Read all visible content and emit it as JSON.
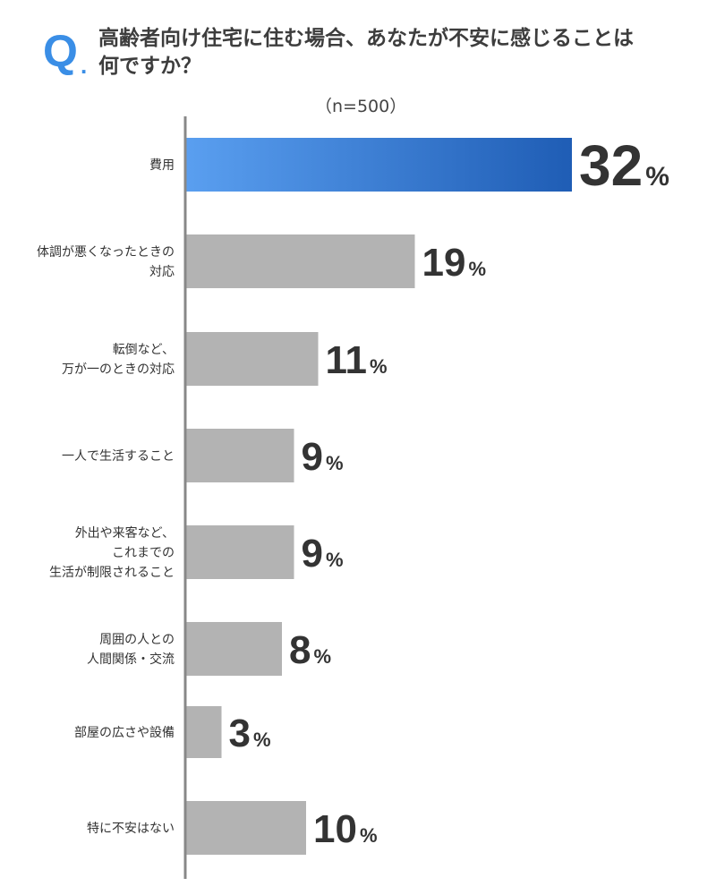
{
  "question": {
    "mark": "Q",
    "mark_dot": ".",
    "text": "高齢者向け住宅に住む場合、あなたが不安に感じることは\n何ですか？"
  },
  "sample_size": "（n=500）",
  "chart_data": {
    "type": "bar",
    "orientation": "horizontal",
    "title": "高齢者向け住宅に住む場合、あなたが不安に感じることは何ですか？",
    "sample": "（n=500）",
    "unit": "%",
    "categories": [
      "費用",
      "体調が悪くなったときの\n対応",
      "転倒など、\n万が一のときの対応",
      "一人で生活すること",
      "外出や来客など、\nこれまでの\n生活が制限されること",
      "周囲の人との\n人間関係・交流",
      "部屋の広さや設備",
      "特に不安はない"
    ],
    "values": [
      32,
      19,
      11,
      9,
      9,
      8,
      3,
      10
    ],
    "highlight_index": 0,
    "highlight_gradient": [
      "#5a9ff0",
      "#1f5db5"
    ],
    "bar_color": "#b3b3b3",
    "axis_color": "#888888",
    "grid": false,
    "legend": "none"
  }
}
